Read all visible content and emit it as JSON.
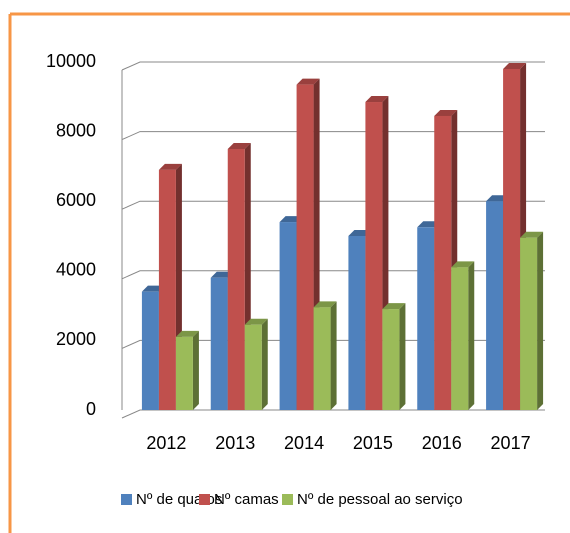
{
  "chart_data": {
    "type": "bar3d",
    "categories": [
      "2012",
      "2013",
      "2014",
      "2015",
      "2016",
      "2017"
    ],
    "series": [
      {
        "name": "Nº de quatos",
        "color": "#4f81bd",
        "values": [
          3400,
          3800,
          5400,
          5000,
          5250,
          6000
        ]
      },
      {
        "name": "Nº camas",
        "color": "#c0504d",
        "values": [
          6900,
          7500,
          9350,
          8850,
          8450,
          9800
        ]
      },
      {
        "name": "Nº de pessoal ao serviço",
        "color": "#9bbb59",
        "values": [
          2100,
          2450,
          2950,
          2900,
          4100,
          4950
        ]
      }
    ],
    "ylim": [
      0,
      10000
    ],
    "yticks": [
      0,
      2000,
      4000,
      6000,
      8000,
      10000
    ],
    "grid": true,
    "legend": "bottom"
  }
}
